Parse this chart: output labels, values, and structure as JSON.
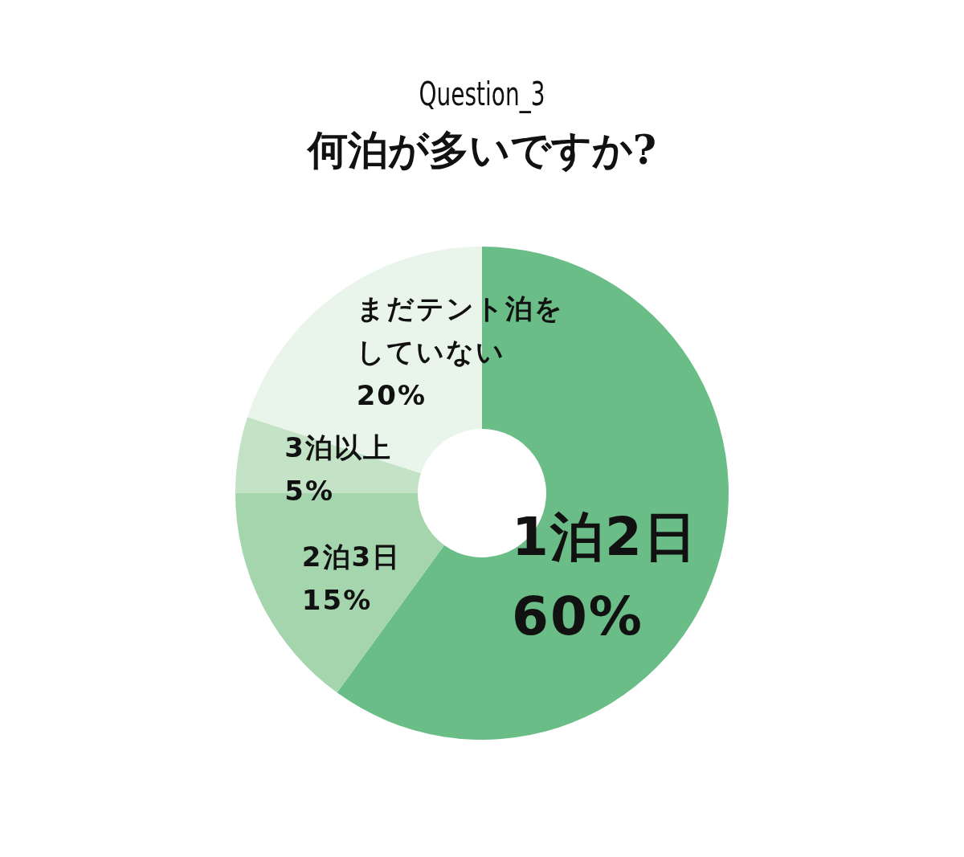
{
  "chart_data": {
    "type": "donut",
    "subtitle": "Question_3",
    "title": "何泊が多いですか?",
    "categories": [
      "1泊2日",
      "2泊3日",
      "3泊以上",
      "まだテント泊をしていない"
    ],
    "values": [
      60,
      15,
      5,
      20
    ],
    "colors": [
      "#6bbd87",
      "#a5d5ad",
      "#c3e2c6",
      "#e9f4ea"
    ],
    "value_labels": [
      "60%",
      "15%",
      "5%",
      "20%"
    ]
  }
}
